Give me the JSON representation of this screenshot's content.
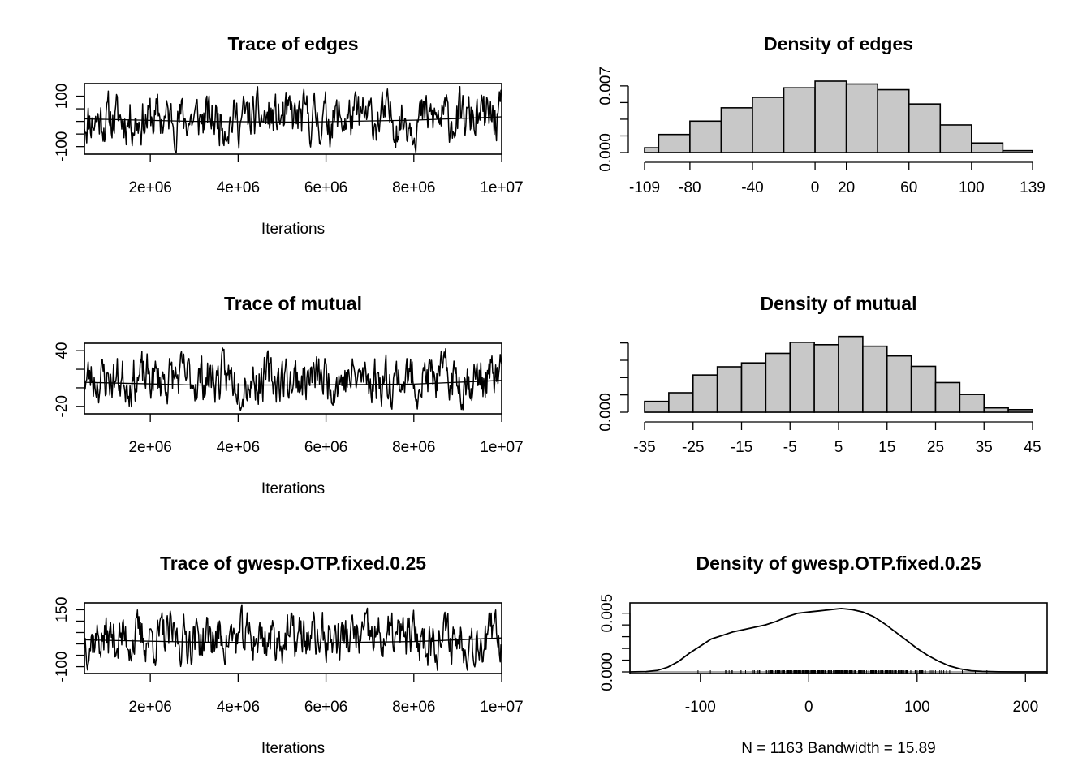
{
  "chart_data": [
    {
      "id": "trace-edges",
      "type": "line",
      "title": "Trace of edges",
      "xlabel": "Iterations",
      "ylabel": "",
      "xlim": [
        500000,
        10000000
      ],
      "ylim": [
        -130,
        150
      ],
      "xticks": [
        2000000,
        4000000,
        6000000,
        8000000,
        10000000
      ],
      "xtick_labels": [
        "2e+06",
        "4e+06",
        "6e+06",
        "8e+06",
        "1e+07"
      ],
      "yticks": [
        -100,
        -50,
        0,
        50,
        100
      ],
      "ytick_labels": [
        "-100",
        "",
        "",
        "",
        "100"
      ],
      "trend": [
        [
          500000,
          10
        ],
        [
          3000000,
          0
        ],
        [
          5500000,
          -3
        ],
        [
          8000000,
          5
        ],
        [
          10000000,
          18
        ]
      ],
      "series_seed": 11
    },
    {
      "id": "density-edges",
      "type": "bar",
      "title": "Density of edges",
      "xlabel": "",
      "ylabel": "",
      "xlim": [
        -109,
        139
      ],
      "ylim": [
        0,
        0.0075
      ],
      "bin_edges": [
        -109,
        -100,
        -80,
        -60,
        -40,
        -20,
        0,
        20,
        40,
        60,
        80,
        100,
        120,
        139
      ],
      "values": [
        0.0005,
        0.0019,
        0.0033,
        0.0047,
        0.0058,
        0.0068,
        0.0075,
        0.0072,
        0.0066,
        0.0051,
        0.0029,
        0.001,
        0.0002
      ],
      "xticks": [
        -109,
        -80,
        -40,
        0,
        20,
        60,
        100,
        139
      ],
      "xtick_labels": [
        "-109",
        "-80",
        "-40",
        "0",
        "20",
        "60",
        "100",
        "139"
      ],
      "yticks": [
        0.0,
        0.00175,
        0.0035,
        0.00525,
        0.007
      ],
      "ytick_labels": [
        "0.000",
        "",
        "",
        "",
        "0.007"
      ]
    },
    {
      "id": "trace-mutual",
      "type": "line",
      "title": "Trace of mutual",
      "xlabel": "Iterations",
      "ylabel": "",
      "xlim": [
        500000,
        10000000
      ],
      "ylim": [
        -28,
        48
      ],
      "xticks": [
        2000000,
        4000000,
        6000000,
        8000000,
        10000000
      ],
      "xtick_labels": [
        "2e+06",
        "4e+06",
        "6e+06",
        "8e+06",
        "1e+07"
      ],
      "yticks": [
        -20,
        0,
        20,
        40
      ],
      "ytick_labels": [
        "-20",
        "",
        "",
        "40"
      ],
      "trend": [
        [
          500000,
          6
        ],
        [
          3000000,
          3
        ],
        [
          5500000,
          3
        ],
        [
          8000000,
          4
        ],
        [
          10000000,
          8
        ]
      ],
      "series_seed": 23
    },
    {
      "id": "density-mutual",
      "type": "bar",
      "title": "Density of mutual",
      "xlabel": "",
      "ylabel": "",
      "xlim": [
        -35,
        45
      ],
      "ylim": [
        0,
        0.033
      ],
      "bin_edges": [
        -35,
        -30,
        -25,
        -20,
        -15,
        -10,
        -5,
        0,
        5,
        10,
        15,
        20,
        25,
        30,
        35,
        40,
        45
      ],
      "values": [
        0.005,
        0.009,
        0.0172,
        0.021,
        0.0228,
        0.0272,
        0.0323,
        0.0312,
        0.035,
        0.0305,
        0.026,
        0.0212,
        0.0137,
        0.0082,
        0.002,
        0.0012
      ],
      "xticks": [
        -35,
        -25,
        -15,
        -5,
        5,
        15,
        25,
        35,
        45
      ],
      "xtick_labels": [
        "-35",
        "-25",
        "-15",
        "-5",
        "5",
        "15",
        "25",
        "35",
        "45"
      ],
      "yticks": [
        0.0,
        0.008,
        0.016,
        0.024,
        0.032
      ],
      "ytick_labels": [
        "0.000",
        "",
        "",
        "",
        ""
      ],
      "ytick_positions_data": [
        0.0,
        0.008,
        0.016,
        0.024,
        0.032
      ]
    },
    {
      "id": "trace-gwesp",
      "type": "line",
      "title": "Trace of gwesp.OTP.fixed.0.25",
      "xlabel": "Iterations",
      "ylabel": "",
      "xlim": [
        500000,
        10000000
      ],
      "ylim": [
        -130,
        180
      ],
      "xticks": [
        2000000,
        4000000,
        6000000,
        8000000,
        10000000
      ],
      "xtick_labels": [
        "2e+06",
        "4e+06",
        "6e+06",
        "8e+06",
        "1e+07"
      ],
      "yticks": [
        -100,
        -50,
        0,
        50,
        100,
        150
      ],
      "ytick_labels": [
        "-100",
        "",
        "",
        "",
        "",
        "150"
      ],
      "trend": [
        [
          500000,
          18
        ],
        [
          3000000,
          8
        ],
        [
          5500000,
          4
        ],
        [
          8000000,
          10
        ],
        [
          10000000,
          26
        ]
      ],
      "series_seed": 37
    },
    {
      "id": "density-gwesp",
      "type": "line",
      "title": "Density of gwesp.OTP.fixed.0.25",
      "xlabel": "N = 1163   Bandwidth = 15.89",
      "ylabel": "",
      "xlim": [
        -165,
        220
      ],
      "ylim": [
        0,
        0.0056
      ],
      "xticks": [
        -100,
        0,
        100,
        200
      ],
      "xtick_labels": [
        "-100",
        "0",
        "100",
        "200"
      ],
      "yticks": [
        0.0,
        0.001,
        0.002,
        0.003,
        0.004,
        0.005
      ],
      "ytick_labels": [
        "0.000",
        "",
        "",
        "",
        "",
        "0.005"
      ],
      "curve": [
        [
          -165,
          0.0
        ],
        [
          -150,
          3e-05
        ],
        [
          -140,
          0.00012
        ],
        [
          -130,
          0.0004
        ],
        [
          -120,
          0.0009
        ],
        [
          -110,
          0.0016
        ],
        [
          -100,
          0.0022
        ],
        [
          -90,
          0.0028
        ],
        [
          -80,
          0.0031
        ],
        [
          -70,
          0.0034
        ],
        [
          -60,
          0.0036
        ],
        [
          -50,
          0.0038
        ],
        [
          -40,
          0.004
        ],
        [
          -30,
          0.0043
        ],
        [
          -20,
          0.0047
        ],
        [
          -10,
          0.005
        ],
        [
          0,
          0.0051
        ],
        [
          10,
          0.0052
        ],
        [
          20,
          0.0053
        ],
        [
          30,
          0.0054
        ],
        [
          40,
          0.0053
        ],
        [
          50,
          0.0051
        ],
        [
          60,
          0.0047
        ],
        [
          70,
          0.0041
        ],
        [
          80,
          0.0034
        ],
        [
          90,
          0.0027
        ],
        [
          100,
          0.002
        ],
        [
          110,
          0.0014
        ],
        [
          120,
          0.0009
        ],
        [
          130,
          0.0005
        ],
        [
          140,
          0.00025
        ],
        [
          150,
          0.0001
        ],
        [
          160,
          4e-05
        ],
        [
          175,
          1e-05
        ],
        [
          190,
          0.0
        ],
        [
          220,
          0.0
        ]
      ],
      "rug_range": [
        -115,
        175
      ]
    }
  ]
}
